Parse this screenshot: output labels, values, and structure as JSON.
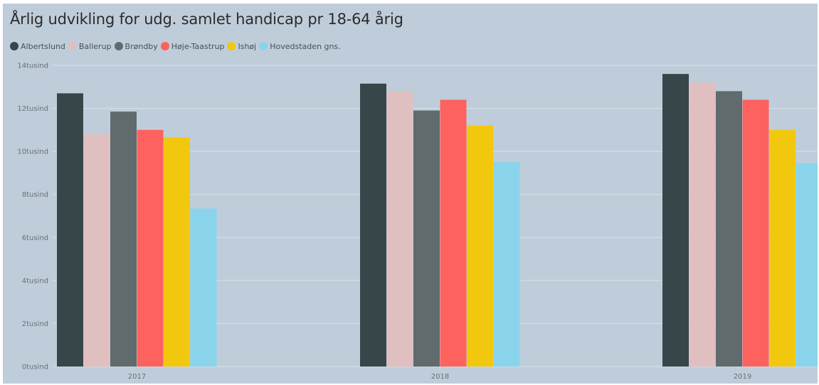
{
  "chart_data": {
    "type": "bar",
    "title": "Årlig udvikling for udg. samlet handicap pr 18-64 årig",
    "categories": [
      "2017",
      "2018",
      "2019"
    ],
    "series": [
      {
        "name": "Albertslund",
        "color": "#374649",
        "values": [
          12700,
          13150,
          13600
        ]
      },
      {
        "name": "Ballerup",
        "color": "#dfbfbf",
        "values": [
          10800,
          12800,
          13200
        ]
      },
      {
        "name": "Brøndby",
        "color": "#5f6b6d",
        "values": [
          11850,
          11900,
          12800
        ]
      },
      {
        "name": "Høje-Taastrup",
        "color": "#fd625e",
        "values": [
          11000,
          12400,
          12400
        ]
      },
      {
        "name": "Ishøj",
        "color": "#f2c80f",
        "values": [
          10650,
          11200,
          11000
        ]
      },
      {
        "name": "Hovedstaden gns.",
        "color": "#8ad4eb",
        "values": [
          7350,
          9500,
          9450
        ]
      }
    ],
    "ylim": [
      0,
      14000
    ],
    "yticks": [
      0,
      2000,
      4000,
      6000,
      8000,
      10000,
      12000,
      14000
    ],
    "ytick_labels": [
      "0tusind",
      "2tusind",
      "4tusind",
      "6tusind",
      "8tusind",
      "10tusind",
      "12tusind",
      "14tusind"
    ],
    "xlabel": "",
    "ylabel": "",
    "grid": true,
    "legend_position": "top-left"
  }
}
